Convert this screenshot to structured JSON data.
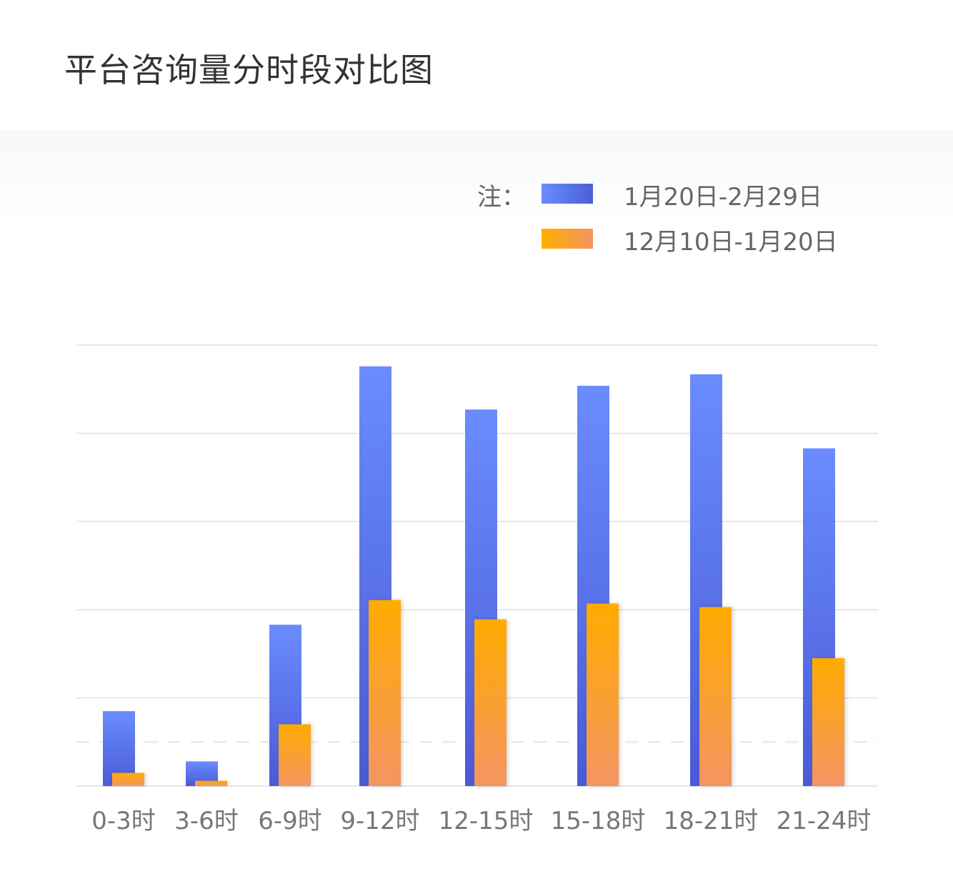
{
  "title": "平台咨询量分时段对比图",
  "legend": {
    "note": "注：",
    "items": [
      "1月20日-2月29日",
      "12月10日-1月20日"
    ]
  },
  "chart_data": {
    "type": "bar",
    "title": "平台咨询量分时段对比图",
    "categories": [
      "0-3时",
      "3-6时",
      "6-9时",
      "9-12时",
      "12-15时",
      "15-18时",
      "18-21时",
      "21-24时"
    ],
    "series": [
      {
        "name": "1月20日-2月29日",
        "color": "#5b7cf5",
        "values": [
          0.85,
          0.28,
          1.83,
          4.76,
          4.27,
          4.54,
          4.67,
          3.83
        ]
      },
      {
        "name": "12月10日-1月20日",
        "color": "#fca81b",
        "values": [
          0.15,
          0.06,
          0.7,
          2.11,
          1.89,
          2.07,
          2.03,
          1.45
        ]
      }
    ],
    "ylim": [
      0,
      5
    ],
    "grid": true,
    "y_tick_labels_shown": false,
    "legend_position": "top-right"
  }
}
